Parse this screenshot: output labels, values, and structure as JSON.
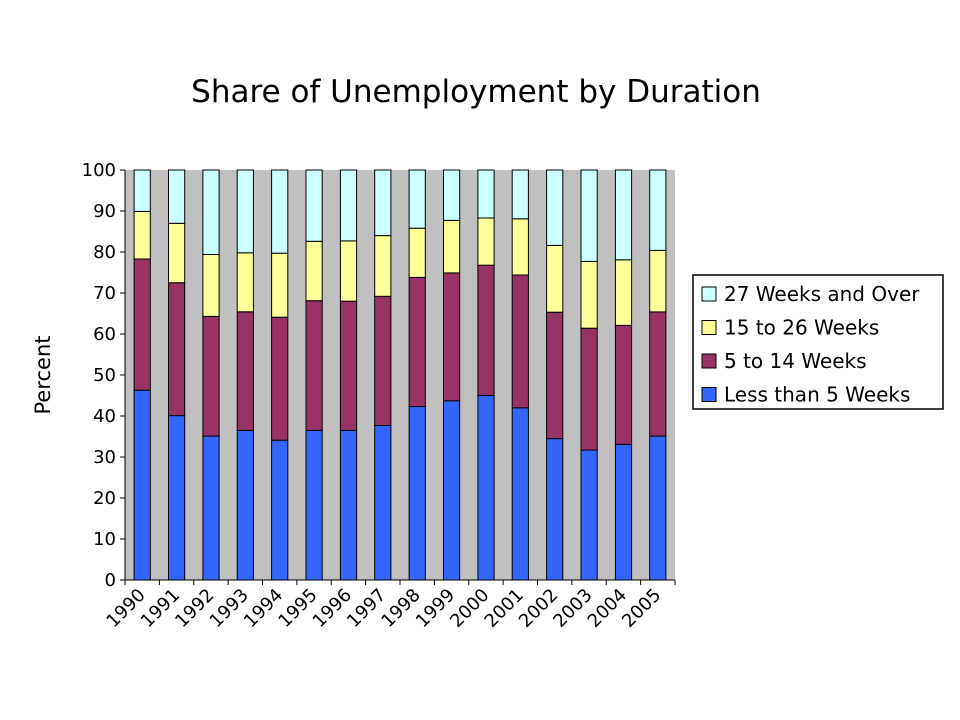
{
  "chart_data": {
    "type": "bar",
    "stacked": true,
    "title": "Share of Unemployment by Duration",
    "xlabel": "",
    "ylabel": "Percent",
    "ylim": [
      0,
      100
    ],
    "yticks": [
      0,
      10,
      20,
      30,
      40,
      50,
      60,
      70,
      80,
      90,
      100
    ],
    "grid": false,
    "legend_position": "right",
    "plot_background": "#c0c0c0",
    "categories": [
      "1990",
      "1991",
      "1992",
      "1993",
      "1994",
      "1995",
      "1996",
      "1997",
      "1998",
      "1999",
      "2000",
      "2001",
      "2002",
      "2003",
      "2004",
      "2005"
    ],
    "series": [
      {
        "name": "Less than 5 Weeks",
        "color": "#3366ff",
        "values": [
          46.3,
          40.1,
          35.1,
          36.5,
          34.1,
          36.5,
          36.5,
          37.7,
          42.3,
          43.7,
          45.0,
          42.0,
          34.5,
          31.7,
          33.1,
          35.1
        ]
      },
      {
        "name": "5 to 14 Weeks",
        "color": "#993366",
        "values": [
          32.0,
          32.4,
          29.2,
          28.9,
          30.0,
          31.6,
          31.5,
          31.5,
          31.5,
          31.2,
          31.8,
          32.4,
          30.8,
          29.7,
          29.0,
          30.3
        ]
      },
      {
        "name": "15 to 26 Weeks",
        "color": "#ffff99",
        "values": [
          11.6,
          14.5,
          15.1,
          14.4,
          15.6,
          14.5,
          14.7,
          14.8,
          12.0,
          12.8,
          11.5,
          13.7,
          16.3,
          16.3,
          16.0,
          15.0
        ]
      },
      {
        "name": "27 Weeks and Over",
        "color": "#ccffff",
        "values": [
          10.1,
          13.0,
          20.6,
          20.2,
          20.3,
          17.4,
          17.3,
          16.0,
          14.2,
          12.3,
          11.7,
          11.9,
          18.4,
          22.3,
          21.9,
          19.6
        ]
      }
    ]
  }
}
